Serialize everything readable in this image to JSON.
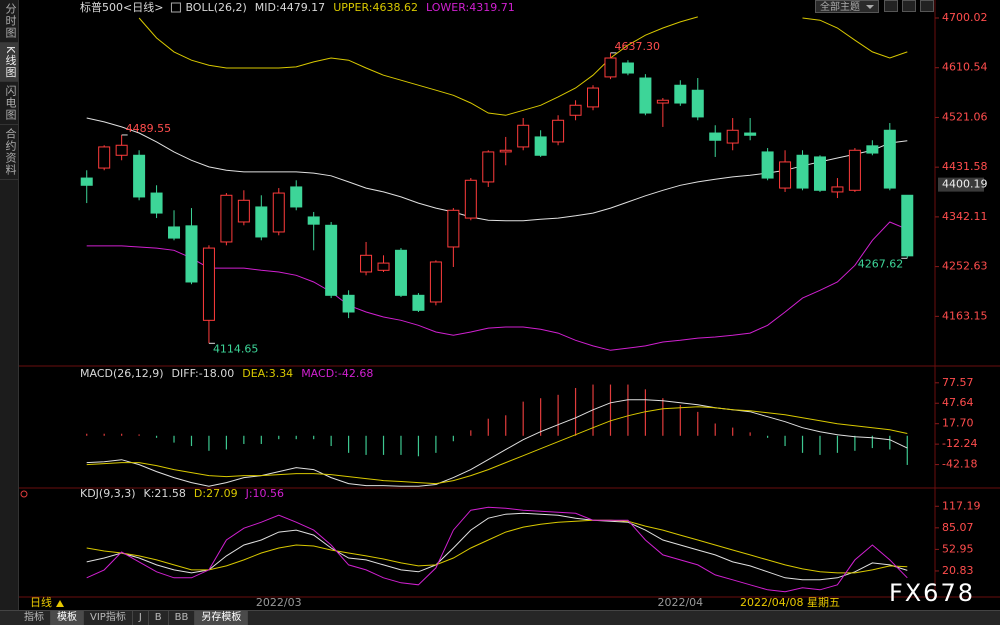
{
  "ui": {
    "sidebar_tabs": [
      "分时图",
      "K线图",
      "闪电图",
      "合约资料"
    ],
    "theme_button": "全部主题",
    "period": "日线",
    "cursor_date": "2022/04/08 星期五",
    "bottom_tabs": [
      "指标",
      "模板",
      "VIP指标",
      "J",
      "B",
      "BB",
      "另存模板"
    ],
    "watermark": "FX678"
  },
  "chart_data": [
    {
      "type": "candlestick",
      "header": [
        "标普500<日线>",
        "BOLL(26,2)",
        "MID:4479.17",
        "UPPER:4638.62",
        "LOWER:4319.71"
      ],
      "header_colors": [
        "#d8d8d8",
        "#d8d8d8",
        "#d8d8d8",
        "#d8c800",
        "#d020d0"
      ],
      "categories": [
        null,
        null,
        null,
        null,
        null,
        null,
        null,
        null,
        null,
        null,
        null,
        "2022/03",
        null,
        null,
        null,
        null,
        null,
        null,
        null,
        null,
        null,
        null,
        null,
        null,
        null,
        null,
        null,
        null,
        null,
        null,
        null,
        null,
        null,
        null,
        "2022/04",
        null,
        null,
        null,
        null,
        null,
        null,
        null,
        null,
        null,
        null,
        null,
        null,
        null
      ],
      "open": [
        4412,
        4430,
        4453,
        4453,
        4385,
        4324,
        4326,
        4156,
        4297,
        4333,
        4360,
        4315,
        4396,
        4342,
        4327,
        4201,
        4243,
        4246,
        4282,
        4201,
        4189,
        4288,
        4340,
        4405,
        4459,
        4468,
        4486,
        4477,
        4525,
        4540,
        4594,
        4619,
        4592,
        4547,
        4579,
        4570,
        4493,
        4475,
        4493,
        4459,
        4394,
        4453,
        4450,
        4387,
        4390,
        4470,
        4498,
        4381
      ],
      "high": [
        4426,
        4471,
        4489.55,
        4462,
        4399,
        4354,
        4358,
        4291,
        4385,
        4390,
        4381,
        4394,
        4408,
        4351,
        4333,
        4210,
        4297,
        4273,
        4286,
        4205,
        4264,
        4358,
        4412,
        4462,
        4486,
        4520,
        4498,
        4525,
        4552,
        4579,
        4637.3,
        4624,
        4599,
        4556,
        4588,
        4592,
        4507,
        4520,
        4520,
        4466,
        4462,
        4462,
        4453,
        4412,
        4466,
        4480,
        4511,
        4381
      ],
      "low": [
        4367,
        4426,
        4444,
        4372,
        4340,
        4300,
        4221,
        4114.65,
        4291,
        4327,
        4300,
        4309,
        4354,
        4282,
        4196,
        4160,
        4237,
        4243,
        4198,
        4171,
        4183,
        4252,
        4336,
        4396,
        4435,
        4462,
        4450,
        4471,
        4516,
        4534,
        4590,
        4597,
        4525,
        4504,
        4542,
        4516,
        4450,
        4462,
        4480,
        4408,
        4387,
        4390,
        4387,
        4376,
        4387,
        4453,
        4390,
        4267.62
      ],
      "close": [
        4399,
        4468,
        4471,
        4378,
        4349,
        4304,
        4225,
        4286,
        4381,
        4372,
        4306,
        4385,
        4360,
        4329,
        4201,
        4171,
        4273,
        4259,
        4201,
        4174,
        4261,
        4354,
        4408,
        4459,
        4462,
        4507,
        4453,
        4516,
        4543,
        4574,
        4628,
        4601,
        4529,
        4552,
        4547,
        4522,
        4480,
        4498,
        4489,
        4412,
        4441,
        4394,
        4390,
        4396,
        4462,
        4457,
        4394,
        4272
      ],
      "high_labels": [
        null,
        null,
        "4489.55",
        null,
        null,
        null,
        null,
        null,
        null,
        null,
        null,
        null,
        null,
        null,
        null,
        null,
        null,
        null,
        null,
        null,
        null,
        null,
        null,
        null,
        null,
        null,
        null,
        null,
        null,
        null,
        "4637.30",
        null,
        null,
        null,
        null,
        null,
        null,
        null,
        null,
        null,
        null,
        null,
        null,
        null,
        null,
        null,
        null,
        null
      ],
      "low_labels": [
        null,
        null,
        null,
        null,
        null,
        null,
        null,
        "4114.65",
        null,
        null,
        null,
        null,
        null,
        null,
        null,
        null,
        null,
        null,
        null,
        null,
        null,
        null,
        null,
        null,
        null,
        null,
        null,
        null,
        null,
        null,
        null,
        null,
        null,
        null,
        null,
        null,
        null,
        null,
        null,
        null,
        null,
        null,
        null,
        null,
        null,
        null,
        null,
        "4267.62"
      ],
      "up_color": "#ff3c3c",
      "down_color": "#3dd598",
      "high_label_color": "#ff4d4d",
      "low_label_color": "#3dd598",
      "series": [
        {
          "color": "#d8c800",
          "values": [
            null,
            null,
            null,
            4700,
            4664,
            4639,
            4624,
            4615,
            4610,
            4610,
            4610,
            4610,
            4612,
            4621,
            4628,
            4624,
            4610,
            4597,
            4588,
            4579,
            4570,
            4561,
            4547,
            4529,
            4525,
            4534,
            4543,
            4558,
            4574,
            4597,
            4628,
            4651,
            4669,
            4682,
            4693,
            4702,
            null,
            null,
            null,
            null,
            null,
            4700,
            4696,
            4682,
            4660,
            4639,
            4628,
            4639
          ]
        },
        {
          "color": "#e0e0e0",
          "values": [
            4520,
            4513,
            4504,
            4493,
            4477,
            4459,
            4444,
            4432,
            4426,
            4423,
            4423,
            4423,
            4423,
            4421,
            4416,
            4405,
            4394,
            4387,
            4378,
            4367,
            4358,
            4351,
            4342,
            4336,
            4335,
            4335,
            4338,
            4340,
            4344,
            4349,
            4358,
            4369,
            4380,
            4390,
            4399,
            4405,
            4410,
            4414,
            4417,
            4421,
            4426,
            4434,
            4441,
            4448,
            4455,
            4462,
            4475,
            4479.17
          ]
        },
        {
          "color": "#d020d0",
          "values": [
            4290,
            4290,
            4290,
            4288,
            4286,
            4282,
            4268,
            4250,
            4250,
            4250,
            4246,
            4243,
            4237,
            4225,
            4207,
            4183,
            4171,
            4162,
            4156,
            4147,
            4135,
            4129,
            4135,
            4142,
            4144,
            4144,
            4140,
            4133,
            4120,
            4110,
            4102,
            4106,
            4110,
            4117,
            4120,
            4124,
            4126,
            4129,
            4133,
            4147,
            4171,
            4196,
            4210,
            4225,
            4255,
            4300,
            4333,
            4319.71
          ]
        }
      ],
      "ylim": [
        4099,
        4718
      ],
      "yticks": [
        4700.02,
        4610.54,
        4521.06,
        4431.58,
        4342.11,
        4252.63,
        4163.15
      ],
      "price_marker": 4400.19
    },
    {
      "type": "macd",
      "header": [
        "MACD(26,12,9)",
        "DIFF:-18.00",
        "DEA:3.34",
        "MACD:-42.68"
      ],
      "header_colors": [
        "#d8d8d8",
        "#d8d8d8",
        "#d8c800",
        "#d020d0"
      ],
      "bars": [
        3,
        3,
        3,
        2,
        -3,
        -10,
        -15,
        -22,
        -20,
        -12,
        -12,
        -5,
        -5,
        -5,
        -15,
        -25,
        -28,
        -28,
        -28,
        -30,
        -25,
        -8,
        8,
        25,
        30,
        50,
        55,
        60,
        70,
        75,
        75,
        75,
        68,
        55,
        45,
        35,
        18,
        12,
        5,
        -3,
        -15,
        -25,
        -28,
        -25,
        -22,
        -18,
        -20,
        -42.68
      ],
      "up_color": "#e03c3c",
      "down_color": "#3dc890",
      "series": [
        {
          "color": "#e0e0e0",
          "values": [
            -39.3,
            -37.9,
            -35,
            -42.2,
            -52.5,
            -61.2,
            -68.5,
            -74,
            -68.5,
            -61.2,
            -58.3,
            -52.5,
            -46.6,
            -49.5,
            -61.2,
            -70,
            -72.9,
            -72.9,
            -74,
            -74,
            -71.4,
            -61.2,
            -49.5,
            -34.9,
            -20.3,
            -5.7,
            6,
            16.2,
            26.4,
            38.1,
            48.3,
            52.7,
            52.7,
            51.3,
            48.3,
            45.4,
            41,
            38.1,
            35.2,
            27.9,
            20.6,
            11.8,
            6,
            1.6,
            -1.4,
            -2.8,
            -5.7,
            -18
          ]
        },
        {
          "color": "#d8c800",
          "values": [
            -42.2,
            -40.8,
            -39.3,
            -39.3,
            -43.7,
            -49.5,
            -53.9,
            -58.3,
            -59.8,
            -58.3,
            -58.3,
            -56.8,
            -55.4,
            -55.4,
            -56.8,
            -59.8,
            -62.7,
            -65.6,
            -67,
            -68.5,
            -70,
            -65.6,
            -58.3,
            -49.5,
            -39.3,
            -29.1,
            -18.9,
            -8.6,
            1.6,
            11.8,
            22,
            29.3,
            35.2,
            39.6,
            41,
            42.5,
            41,
            38.1,
            36.6,
            33.7,
            30.8,
            26.4,
            22,
            17.7,
            14.7,
            11.8,
            8.9,
            3.34
          ]
        }
      ],
      "ylim": [
        -75,
        89
      ],
      "yticks": [
        77.57,
        47.64,
        {
          "value": 17.7,
          "label": "17.70"
        },
        -12.24,
        -42.18
      ]
    },
    {
      "type": "line",
      "header": [
        "KDJ(9,3,3)",
        "K:21.58",
        "D:27.09",
        "J:10.56"
      ],
      "header_colors": [
        "#d8d8d8",
        "#d8d8d8",
        "#d8c800",
        "#d020d0"
      ],
      "series": [
        {
          "color": "#e0e0e0",
          "values": [
            34.3,
            40.2,
            47.6,
            40.2,
            29.8,
            22.4,
            18,
            22.4,
            43.2,
            59.5,
            66.9,
            78.7,
            81.7,
            74.3,
            55,
            40.2,
            37.3,
            29.8,
            22.4,
            19.5,
            29.8,
            55,
            81.7,
            99.4,
            105.4,
            106.8,
            105.4,
            103.9,
            99.4,
            96.5,
            95,
            93.5,
            81.7,
            66.9,
            59.5,
            52.1,
            44.7,
            34.3,
            28.4,
            19.5,
            10.6,
            7.6,
            7.6,
            10.6,
            19.5,
            32.8,
            29.8,
            21.58
          ]
        },
        {
          "color": "#d8c800",
          "values": [
            55,
            50.6,
            47.6,
            43.2,
            37.3,
            29.8,
            22.4,
            22.4,
            28.4,
            37.3,
            47.6,
            55,
            59.5,
            58,
            52.1,
            47.6,
            43.2,
            38.7,
            32.8,
            28.4,
            29.8,
            40.2,
            55,
            66.9,
            78.7,
            86.1,
            90.5,
            93.5,
            95,
            96.5,
            96.5,
            95,
            87.6,
            81.7,
            74.3,
            66.9,
            59.5,
            52.1,
            44.7,
            37.3,
            29.8,
            23.9,
            19.5,
            18,
            18,
            22.4,
            28.4,
            27.09
          ]
        },
        {
          "color": "#d020d0",
          "values": [
            10.6,
            22.4,
            49.1,
            34.3,
            19.5,
            10.6,
            10.6,
            22.4,
            66.9,
            84.6,
            93.5,
            103.9,
            93.5,
            81.7,
            59.5,
            29.8,
            22.4,
            10.6,
            3.2,
            0.2,
            25.4,
            81.7,
            111.3,
            115.7,
            114.2,
            111.3,
            109.8,
            108.3,
            106.8,
            96.5,
            96.5,
            96.5,
            66.9,
            44.7,
            37.3,
            29.8,
            15,
            7.6,
            0.2,
            -7.2,
            -10.1,
            -4.2,
            -7.2,
            0.2,
            37.3,
            59.5,
            37.3,
            10.56
          ]
        }
      ],
      "ylim": [
        -15,
        134
      ],
      "yticks": [
        117.19,
        85.07,
        52.95,
        20.83
      ]
    }
  ]
}
